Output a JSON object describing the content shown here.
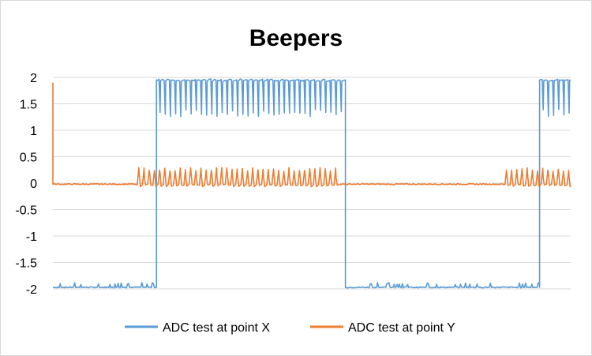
{
  "chart_data": {
    "type": "line",
    "title": "Beepers",
    "xlabel": "",
    "ylabel": "",
    "ylim": [
      -2,
      2
    ],
    "y_ticks": [
      "2",
      "1.5",
      "1",
      "0.5",
      "0",
      "-0.5",
      "-1",
      "-1.5",
      "-2"
    ],
    "x_tick_labels": "none",
    "grid": "horizontal",
    "legend_position": "bottom",
    "x_range": [
      0,
      1000
    ],
    "series": [
      {
        "name": "ADC test at point X",
        "color": "#5b9bd5",
        "segments": [
          {
            "x": [
              0,
              200
            ],
            "pattern": "low",
            "level": -1.97
          },
          {
            "x": [
              200,
              565
            ],
            "pattern": "high-pulsed",
            "level": 1.95,
            "dip_to": 1.25
          },
          {
            "x": [
              565,
              940
            ],
            "pattern": "low",
            "level": -1.97
          },
          {
            "x": [
              940,
              1000
            ],
            "pattern": "high-pulsed",
            "level": 1.95,
            "dip_to": 1.25
          }
        ]
      },
      {
        "name": "ADC test at point Y",
        "color": "#ed7d31",
        "initial_spike": 1.9,
        "segments": [
          {
            "x": [
              0,
              160
            ],
            "pattern": "flat",
            "level": -0.02
          },
          {
            "x": [
              160,
              555
            ],
            "pattern": "pulsed",
            "level": -0.03,
            "peak": 0.28
          },
          {
            "x": [
              555,
              870
            ],
            "pattern": "flat",
            "level": -0.02
          },
          {
            "x": [
              870,
              1000
            ],
            "pattern": "pulsed",
            "level": -0.03,
            "peak": 0.28
          }
        ]
      }
    ]
  }
}
